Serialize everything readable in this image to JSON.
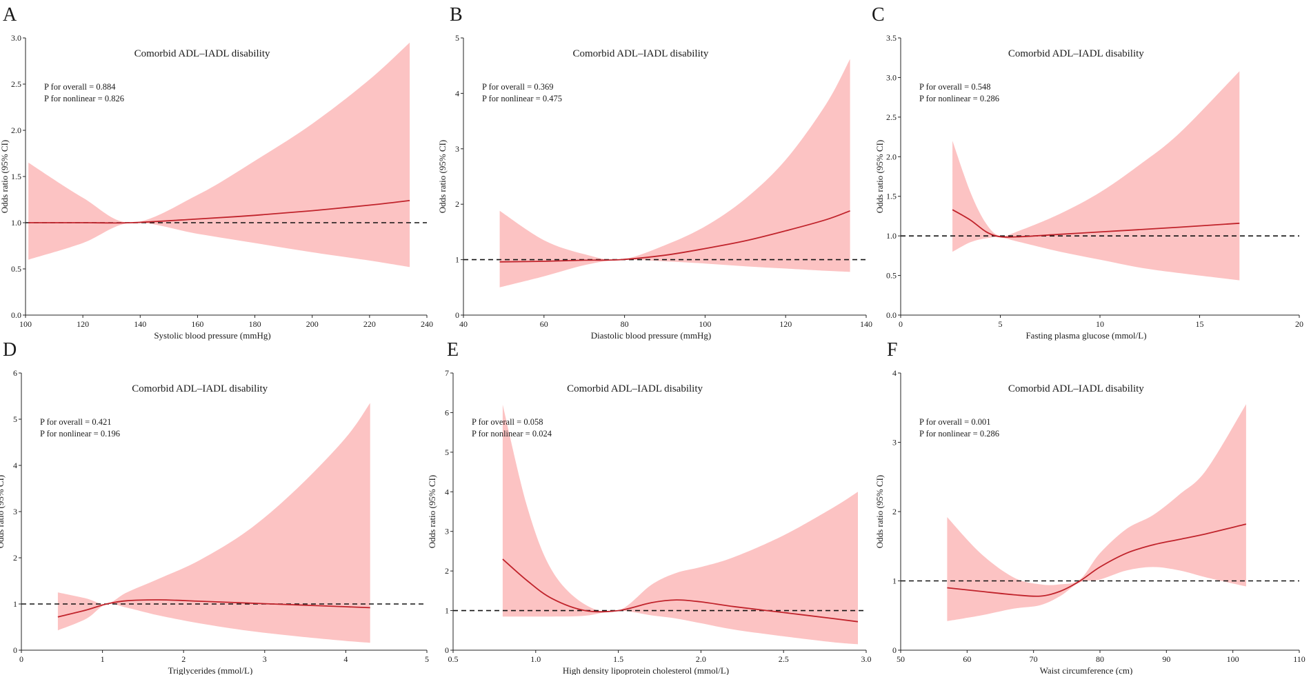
{
  "chart_data": [
    {
      "type": "line",
      "panel_label": "A",
      "title": "Comorbid ADL–IADL disability",
      "xlabel": "Systolic blood pressure (mmHg)",
      "ylabel": "Odds ratio (95% CI)",
      "xlim": [
        100,
        240
      ],
      "ylim": [
        0,
        3.0
      ],
      "xticks": [
        100,
        120,
        140,
        160,
        180,
        200,
        220,
        240
      ],
      "xtick_labels": [
        "100",
        "120",
        "140",
        "160",
        "180",
        "200",
        "220",
        "240"
      ],
      "yticks": [
        0,
        0.5,
        1.0,
        1.5,
        2.0,
        2.5,
        3.0
      ],
      "ytick_labels": [
        "0.0",
        "0.5",
        "1.0",
        "1.5",
        "2.0",
        "2.5",
        "3.0"
      ],
      "annotations": [
        "P for overall = 0.884",
        "P for nonlinear = 0.826"
      ],
      "reference_y": 1,
      "series": [
        {
          "name": "Odds ratio",
          "x": [
            101,
            120,
            137,
            160,
            180,
            200,
            220,
            234
          ],
          "values": [
            1.0,
            1.0,
            1.0,
            1.04,
            1.08,
            1.13,
            1.19,
            1.24
          ]
        },
        {
          "name": "Upper 95% CI",
          "x": [
            101,
            120,
            137,
            160,
            180,
            200,
            220,
            234
          ],
          "values": [
            1.65,
            1.27,
            1.0,
            1.3,
            1.67,
            2.07,
            2.55,
            2.95
          ]
        },
        {
          "name": "Lower 95% CI",
          "x": [
            101,
            120,
            137,
            160,
            180,
            200,
            220,
            234
          ],
          "values": [
            0.6,
            0.78,
            1.0,
            0.88,
            0.78,
            0.68,
            0.59,
            0.52
          ]
        }
      ]
    },
    {
      "type": "line",
      "panel_label": "B",
      "title": "Comorbid ADL–IADL disability",
      "xlabel": "Diastolic blood pressure (mmHg)",
      "ylabel": "Odds ratio (95% CI)",
      "xlim": [
        40,
        140
      ],
      "ylim": [
        0,
        5
      ],
      "xticks": [
        40,
        60,
        80,
        100,
        120,
        140
      ],
      "xtick_labels": [
        "40",
        "60",
        "80",
        "100",
        "120",
        "140"
      ],
      "yticks": [
        0,
        1,
        2,
        3,
        4,
        5
      ],
      "ytick_labels": [
        "0",
        "1",
        "2",
        "3",
        "4",
        "5"
      ],
      "annotations": [
        "P for overall = 0.369",
        "P for nonlinear = 0.475"
      ],
      "reference_y": 1,
      "series": [
        {
          "name": "Odds ratio",
          "x": [
            49,
            60,
            70,
            79,
            90,
            100,
            110,
            120,
            130,
            136
          ],
          "values": [
            0.96,
            0.97,
            0.99,
            1.0,
            1.08,
            1.2,
            1.34,
            1.52,
            1.72,
            1.88
          ]
        },
        {
          "name": "Upper 95% CI",
          "x": [
            49,
            60,
            70,
            79,
            90,
            100,
            110,
            120,
            130,
            136
          ],
          "values": [
            1.88,
            1.35,
            1.1,
            1.0,
            1.26,
            1.6,
            2.1,
            2.8,
            3.8,
            4.62
          ]
        },
        {
          "name": "Lower 95% CI",
          "x": [
            49,
            60,
            70,
            79,
            90,
            100,
            110,
            120,
            130,
            136
          ],
          "values": [
            0.5,
            0.7,
            0.9,
            1.0,
            0.97,
            0.93,
            0.88,
            0.84,
            0.8,
            0.78
          ]
        }
      ]
    },
    {
      "type": "line",
      "panel_label": "C",
      "title": "Comorbid ADL–IADL disability",
      "xlabel": "Fasting plasma glucose (mmol/L)",
      "ylabel": "Odds ratio (95% CI)",
      "xlim": [
        0,
        20
      ],
      "ylim": [
        0,
        3.5
      ],
      "xticks": [
        0,
        5,
        10,
        15,
        20
      ],
      "xtick_labels": [
        "0",
        "5",
        "10",
        "15",
        "20"
      ],
      "yticks": [
        0,
        0.5,
        1.0,
        1.5,
        2.0,
        2.5,
        3.0,
        3.5
      ],
      "ytick_labels": [
        "0.0",
        "0.5",
        "1.0",
        "1.5",
        "2.0",
        "2.5",
        "3.0",
        "3.5"
      ],
      "annotations": [
        "P for overall = 0.548",
        "P for nonlinear = 0.286"
      ],
      "reference_y": 1,
      "series": [
        {
          "name": "Odds ratio",
          "x": [
            2.6,
            3.5,
            4.3,
            5.0,
            6.0,
            8.0,
            10.0,
            12.0,
            14.0,
            17.0
          ],
          "values": [
            1.33,
            1.2,
            1.05,
            0.99,
            0.99,
            1.02,
            1.05,
            1.08,
            1.11,
            1.16
          ]
        },
        {
          "name": "Upper 95% CI",
          "x": [
            2.6,
            3.5,
            4.3,
            5.0,
            6.0,
            8.0,
            10.0,
            12.0,
            14.0,
            17.0
          ],
          "values": [
            2.2,
            1.55,
            1.15,
            1.0,
            1.07,
            1.28,
            1.55,
            1.9,
            2.3,
            3.08
          ]
        },
        {
          "name": "Lower 95% CI",
          "x": [
            2.6,
            3.5,
            4.3,
            5.0,
            6.0,
            8.0,
            10.0,
            12.0,
            14.0,
            17.0
          ],
          "values": [
            0.8,
            0.92,
            0.97,
            0.98,
            0.92,
            0.8,
            0.7,
            0.6,
            0.53,
            0.44
          ]
        }
      ]
    },
    {
      "type": "line",
      "panel_label": "D",
      "title": "Comorbid ADL–IADL disability",
      "xlabel": "Triglycerides (mmol/L)",
      "ylabel": "Odds ratio (95% CI)",
      "xlim": [
        0,
        5
      ],
      "ylim": [
        0,
        6
      ],
      "xticks": [
        0,
        1,
        2,
        3,
        4,
        5
      ],
      "xtick_labels": [
        "0",
        "1",
        "2",
        "3",
        "4",
        "5"
      ],
      "yticks": [
        0,
        1,
        2,
        3,
        4,
        5,
        6
      ],
      "ytick_labels": [
        "0",
        "1",
        "2",
        "3",
        "4",
        "5",
        "6"
      ],
      "annotations": [
        "P for overall = 0.421",
        "P for nonlinear = 0.196"
      ],
      "reference_y": 1,
      "series": [
        {
          "name": "Odds ratio",
          "x": [
            0.45,
            0.8,
            1.05,
            1.3,
            1.7,
            2.2,
            2.8,
            3.4,
            4.0,
            4.3
          ],
          "values": [
            0.72,
            0.87,
            1.0,
            1.07,
            1.09,
            1.06,
            1.02,
            0.98,
            0.94,
            0.92
          ]
        },
        {
          "name": "Upper 95% CI",
          "x": [
            0.45,
            0.8,
            1.05,
            1.3,
            1.7,
            2.2,
            2.8,
            3.4,
            4.0,
            4.3
          ],
          "values": [
            1.25,
            1.12,
            1.0,
            1.25,
            1.55,
            1.95,
            2.6,
            3.5,
            4.6,
            5.35
          ]
        },
        {
          "name": "Lower 95% CI",
          "x": [
            0.45,
            0.8,
            1.05,
            1.3,
            1.7,
            2.2,
            2.8,
            3.4,
            4.0,
            4.3
          ],
          "values": [
            0.43,
            0.68,
            1.0,
            0.92,
            0.75,
            0.58,
            0.42,
            0.3,
            0.2,
            0.16
          ]
        }
      ]
    },
    {
      "type": "line",
      "panel_label": "E",
      "title": "Comorbid ADL–IADL disability",
      "xlabel": "High density lipoprotein cholesterol (mmol/L)",
      "ylabel": "Odds ratio (95% CI)",
      "xlim": [
        0.5,
        3.0
      ],
      "ylim": [
        0,
        7
      ],
      "xticks": [
        0.5,
        1.0,
        1.5,
        2.0,
        2.5,
        3.0
      ],
      "xtick_labels": [
        "0.5",
        "1.0",
        "1.5",
        "2.0",
        "2.5",
        "3.0"
      ],
      "yticks": [
        0,
        1,
        2,
        3,
        4,
        5,
        6,
        7
      ],
      "ytick_labels": [
        "0",
        "1",
        "2",
        "3",
        "4",
        "5",
        "6",
        "7"
      ],
      "annotations": [
        "P for overall = 0.058",
        "P for nonlinear = 0.024"
      ],
      "reference_y": 1,
      "series": [
        {
          "name": "Odds ratio",
          "x": [
            0.8,
            0.95,
            1.1,
            1.3,
            1.5,
            1.7,
            1.85,
            2.0,
            2.2,
            2.5,
            2.8,
            2.95
          ],
          "values": [
            2.3,
            1.75,
            1.3,
            1.0,
            1.0,
            1.2,
            1.27,
            1.22,
            1.1,
            0.95,
            0.8,
            0.72
          ]
        },
        {
          "name": "Upper 95% CI",
          "x": [
            0.8,
            0.95,
            1.1,
            1.3,
            1.5,
            1.7,
            1.85,
            2.0,
            2.2,
            2.5,
            2.8,
            2.95
          ],
          "values": [
            6.2,
            3.6,
            2.0,
            1.15,
            1.0,
            1.65,
            1.95,
            2.1,
            2.35,
            2.9,
            3.6,
            4.0
          ]
        },
        {
          "name": "Lower 95% CI",
          "x": [
            0.8,
            0.95,
            1.1,
            1.3,
            1.5,
            1.7,
            1.85,
            2.0,
            2.2,
            2.5,
            2.8,
            2.95
          ],
          "values": [
            0.85,
            0.85,
            0.85,
            0.87,
            1.0,
            0.88,
            0.8,
            0.68,
            0.52,
            0.35,
            0.2,
            0.15
          ]
        }
      ]
    },
    {
      "type": "line",
      "panel_label": "F",
      "title": "Comorbid ADL–IADL disability",
      "xlabel": "Waist circumference (cm)",
      "ylabel": "Odds ratio (95% CI)",
      "xlim": [
        50,
        110
      ],
      "ylim": [
        0,
        4
      ],
      "xticks": [
        50,
        60,
        70,
        80,
        90,
        100,
        110
      ],
      "xtick_labels": [
        "50",
        "60",
        "70",
        "80",
        "90",
        "100",
        "110"
      ],
      "yticks": [
        0,
        1,
        2,
        3,
        4
      ],
      "ytick_labels": [
        "0",
        "1",
        "2",
        "3",
        "4"
      ],
      "annotations": [
        "P for overall = 0.001",
        "P for nonlinear = 0.286"
      ],
      "reference_y": 1,
      "series": [
        {
          "name": "Odds ratio",
          "x": [
            57,
            62,
            67,
            71,
            74,
            77,
            80,
            84,
            88,
            92,
            96,
            102
          ],
          "values": [
            0.9,
            0.85,
            0.8,
            0.78,
            0.85,
            1.0,
            1.2,
            1.4,
            1.52,
            1.6,
            1.68,
            1.82
          ]
        },
        {
          "name": "Upper 95% CI",
          "x": [
            57,
            62,
            67,
            71,
            74,
            77,
            80,
            84,
            88,
            92,
            96,
            102
          ],
          "values": [
            1.92,
            1.4,
            1.05,
            0.95,
            0.95,
            1.02,
            1.4,
            1.75,
            1.95,
            2.25,
            2.6,
            3.55
          ]
        },
        {
          "name": "Lower 95% CI",
          "x": [
            57,
            62,
            67,
            71,
            74,
            77,
            80,
            84,
            88,
            92,
            96,
            102
          ],
          "values": [
            0.42,
            0.5,
            0.6,
            0.65,
            0.78,
            0.98,
            1.02,
            1.15,
            1.2,
            1.15,
            1.05,
            0.92
          ]
        }
      ]
    }
  ],
  "colors": {
    "ci_band": "#fcc3c3",
    "line": "#c0232b",
    "reference_line": "#111111",
    "axis": "#222222",
    "text": "#1a1a1a"
  }
}
